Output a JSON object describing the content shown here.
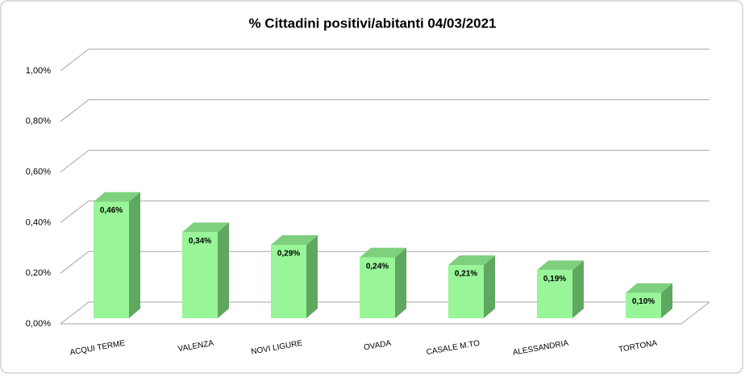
{
  "chart_data": {
    "type": "bar3d",
    "title": "% Cittadini positivi/abitanti 04/03/2021",
    "categories": [
      "ACQUI TERME",
      "VALENZA",
      "NOVI LIGURE",
      "OVADA",
      "CASALE M.TO",
      "ALESSANDRIA",
      "TORTONA"
    ],
    "values": [
      0.46,
      0.34,
      0.29,
      0.24,
      0.21,
      0.19,
      0.1
    ],
    "value_labels": [
      "0,46%",
      "0,34%",
      "0,29%",
      "0,24%",
      "0,21%",
      "0,19%",
      "0,10%"
    ],
    "color": "#98f598",
    "ylim": [
      0,
      1
    ],
    "yticks": [
      {
        "value": 0,
        "label": "0,00%"
      },
      {
        "value": 0.2,
        "label": "0,20%"
      },
      {
        "value": 0.4,
        "label": "0,40%"
      },
      {
        "value": 0.6,
        "label": "0,60%"
      },
      {
        "value": 0.8,
        "label": "0,80%"
      },
      {
        "value": 1,
        "label": "1,00%"
      }
    ],
    "grid": true
  }
}
